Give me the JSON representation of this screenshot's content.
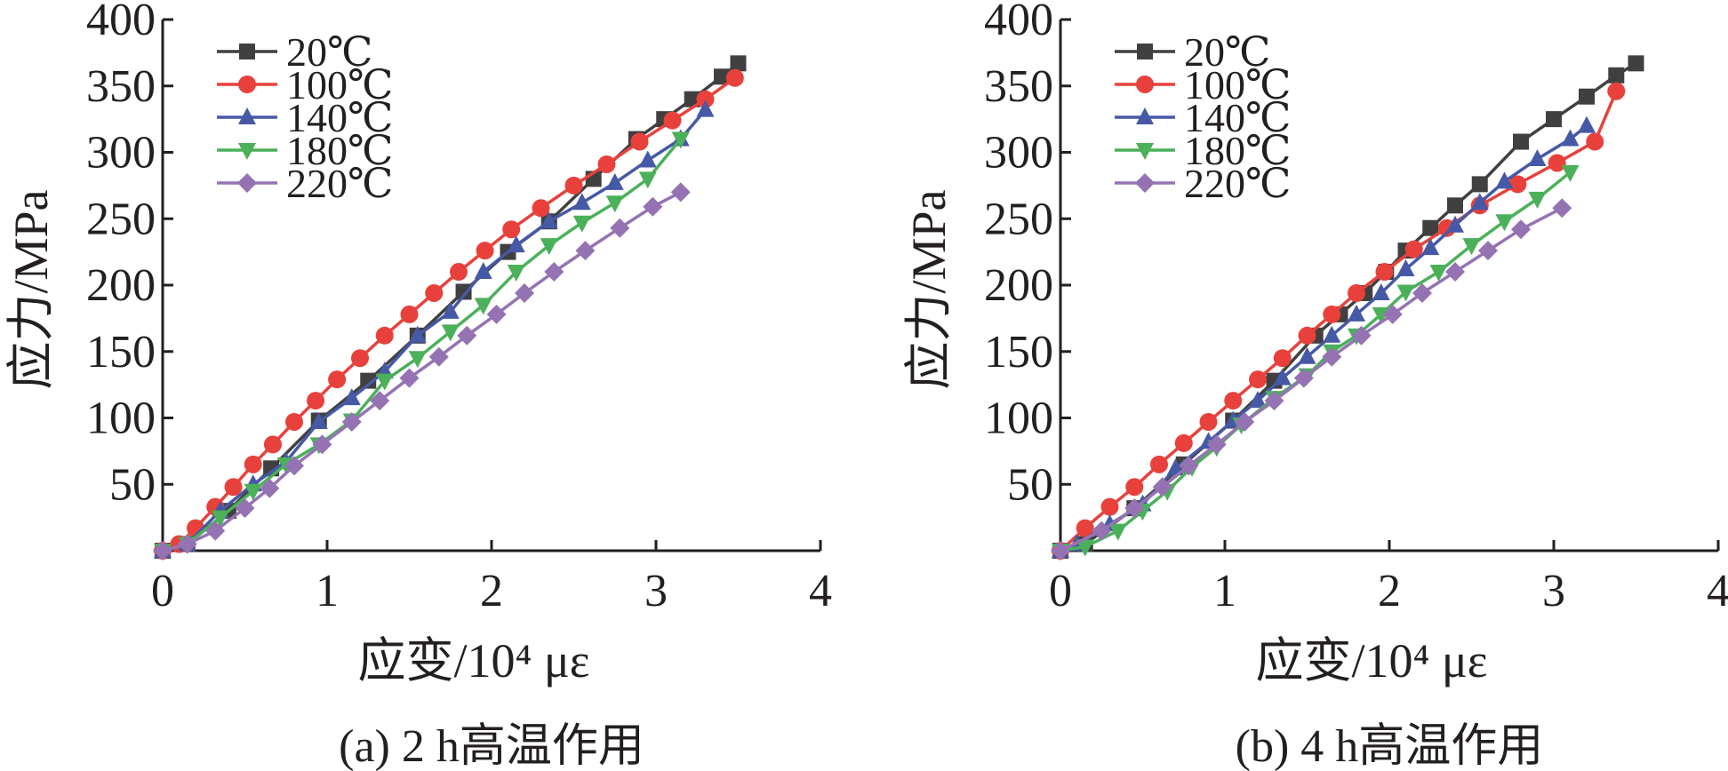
{
  "chart_data": [
    {
      "type": "line",
      "xlabel": "应变/10⁴ με",
      "ylabel": "应力/MPa",
      "caption": "(a) 2 h高温作用",
      "xlim": [
        0,
        4
      ],
      "ylim": [
        0,
        400
      ],
      "xticks": [
        "0",
        "1",
        "2",
        "3",
        "4"
      ],
      "yticks": [
        "50",
        "100",
        "150",
        "200",
        "250",
        "300",
        "350",
        "400"
      ],
      "legend_position": "top-left",
      "series": [
        {
          "name": "20℃",
          "color": "#404040",
          "marker": "square",
          "x": [
            0,
            0.15,
            0.4,
            0.66,
            0.95,
            1.25,
            1.55,
            1.83,
            2.1,
            2.35,
            2.62,
            2.88,
            3.05,
            3.22,
            3.4,
            3.5
          ],
          "y": [
            0,
            5,
            30,
            62,
            98,
            128,
            162,
            195,
            225,
            248,
            280,
            310,
            325,
            340,
            357,
            367
          ]
        },
        {
          "name": "100℃",
          "color": "#e8413c",
          "marker": "circle",
          "x": [
            0,
            0.1,
            0.2,
            0.32,
            0.43,
            0.55,
            0.67,
            0.8,
            0.93,
            1.06,
            1.2,
            1.35,
            1.5,
            1.65,
            1.8,
            1.96,
            2.12,
            2.3,
            2.5,
            2.7,
            2.9,
            3.1,
            3.3,
            3.48
          ],
          "y": [
            0,
            5,
            17,
            33,
            48,
            65,
            80,
            97,
            113,
            129,
            145,
            162,
            178,
            194,
            210,
            226,
            242,
            258,
            275,
            291,
            308,
            324,
            340,
            356
          ]
        },
        {
          "name": "140℃",
          "color": "#4659a6",
          "marker": "triangle-up",
          "x": [
            0,
            0.15,
            0.35,
            0.55,
            0.75,
            0.95,
            1.15,
            1.35,
            1.55,
            1.75,
            1.95,
            2.15,
            2.35,
            2.55,
            2.75,
            2.95,
            3.15,
            3.3
          ],
          "y": [
            0,
            5,
            30,
            50,
            67,
            97,
            115,
            135,
            162,
            180,
            210,
            230,
            248,
            262,
            277,
            294,
            310,
            332
          ]
        },
        {
          "name": "180℃",
          "color": "#4bb05a",
          "marker": "triangle-down",
          "x": [
            0,
            0.15,
            0.35,
            0.55,
            0.75,
            0.95,
            1.15,
            1.35,
            1.55,
            1.75,
            1.95,
            2.15,
            2.35,
            2.55,
            2.75,
            2.95,
            3.15
          ],
          "y": [
            0,
            5,
            25,
            45,
            65,
            80,
            98,
            128,
            145,
            165,
            185,
            210,
            230,
            247,
            262,
            280,
            310
          ]
        },
        {
          "name": "220℃",
          "color": "#9573b3",
          "marker": "diamond",
          "x": [
            0,
            0.15,
            0.32,
            0.5,
            0.65,
            0.8,
            0.97,
            1.15,
            1.32,
            1.5,
            1.68,
            1.85,
            2.03,
            2.2,
            2.38,
            2.57,
            2.78,
            2.98,
            3.15
          ],
          "y": [
            0,
            5,
            15,
            32,
            47,
            64,
            80,
            97,
            113,
            130,
            146,
            162,
            178,
            194,
            210,
            226,
            243,
            259,
            270
          ]
        }
      ]
    },
    {
      "type": "line",
      "xlabel": "应变/10⁴ με",
      "ylabel": "应力/MPa",
      "caption": "(b) 4 h高温作用",
      "xlim": [
        0,
        4
      ],
      "ylim": [
        0,
        400
      ],
      "xticks": [
        "0",
        "1",
        "2",
        "3",
        "4"
      ],
      "yticks": [
        "50",
        "100",
        "150",
        "200",
        "250",
        "300",
        "350",
        "400"
      ],
      "legend_position": "top-left",
      "series": [
        {
          "name": "20℃",
          "color": "#404040",
          "marker": "square",
          "x": [
            0,
            0.15,
            0.45,
            0.75,
            1.05,
            1.3,
            1.55,
            1.7,
            1.85,
            1.98,
            2.1,
            2.25,
            2.4,
            2.55,
            2.8,
            3.0,
            3.2,
            3.38,
            3.5
          ],
          "y": [
            0,
            5,
            32,
            65,
            98,
            128,
            162,
            178,
            194,
            210,
            226,
            243,
            260,
            276,
            308,
            325,
            342,
            358,
            367
          ]
        },
        {
          "name": "100℃",
          "color": "#e8413c",
          "marker": "circle",
          "x": [
            0,
            0.15,
            0.3,
            0.45,
            0.6,
            0.75,
            0.9,
            1.05,
            1.2,
            1.35,
            1.5,
            1.65,
            1.8,
            1.97,
            2.15,
            2.35,
            2.55,
            2.78,
            3.02,
            3.25,
            3.38
          ],
          "y": [
            0,
            17,
            33,
            48,
            65,
            81,
            97,
            113,
            129,
            145,
            162,
            178,
            194,
            210,
            227,
            243,
            260,
            276,
            292,
            308,
            346
          ]
        },
        {
          "name": "140℃",
          "color": "#4659a6",
          "marker": "triangle-up",
          "x": [
            0,
            0.1,
            0.3,
            0.5,
            0.7,
            0.9,
            1.05,
            1.2,
            1.35,
            1.5,
            1.65,
            1.8,
            1.95,
            2.1,
            2.25,
            2.4,
            2.55,
            2.7,
            2.9,
            3.1,
            3.2
          ],
          "y": [
            0,
            5,
            20,
            35,
            62,
            82,
            98,
            113,
            130,
            146,
            162,
            178,
            194,
            212,
            228,
            245,
            262,
            278,
            295,
            310,
            320
          ]
        },
        {
          "name": "180℃",
          "color": "#4bb05a",
          "marker": "triangle-down",
          "x": [
            0,
            0.15,
            0.35,
            0.5,
            0.65,
            0.8,
            0.95,
            1.1,
            1.3,
            1.5,
            1.65,
            1.8,
            1.95,
            2.1,
            2.3,
            2.5,
            2.7,
            2.9,
            3.1
          ],
          "y": [
            0,
            3,
            15,
            30,
            45,
            63,
            78,
            95,
            115,
            132,
            150,
            162,
            178,
            195,
            210,
            230,
            248,
            265,
            285
          ]
        },
        {
          "name": "220℃",
          "color": "#9573b3",
          "marker": "diamond",
          "x": [
            0,
            0.25,
            0.45,
            0.62,
            0.78,
            0.95,
            1.12,
            1.3,
            1.48,
            1.65,
            1.83,
            2.02,
            2.2,
            2.4,
            2.6,
            2.8,
            3.05
          ],
          "y": [
            0,
            15,
            32,
            48,
            64,
            80,
            97,
            113,
            130,
            146,
            162,
            178,
            194,
            210,
            226,
            242,
            258
          ]
        }
      ]
    }
  ]
}
